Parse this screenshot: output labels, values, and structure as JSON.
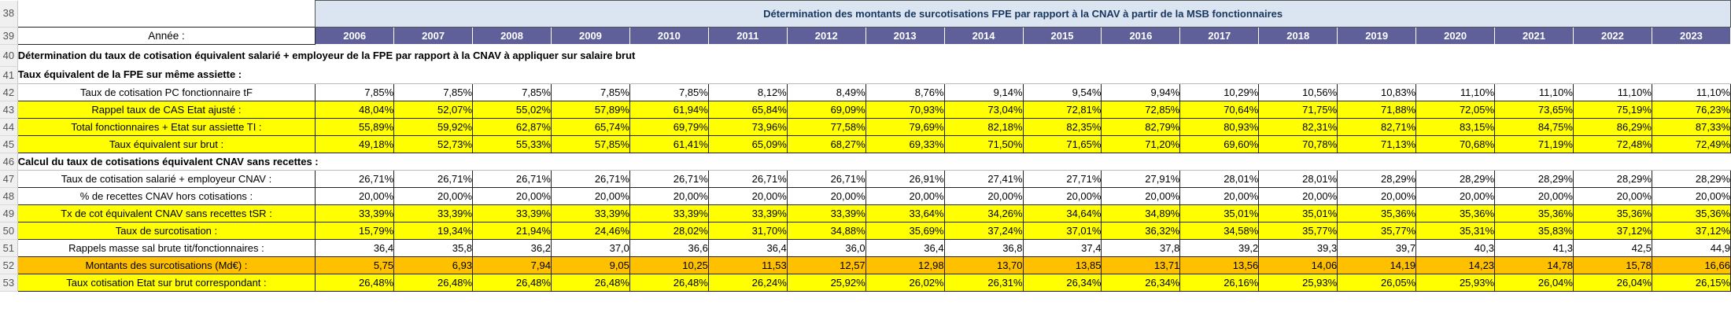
{
  "title": "Détermination des montants de surcotisations FPE par rapport à la CNAV à partir de la MSB fonctionnaires",
  "year_label": "Année :",
  "years": [
    "2006",
    "2007",
    "2008",
    "2009",
    "2010",
    "2011",
    "2012",
    "2013",
    "2014",
    "2015",
    "2016",
    "2017",
    "2018",
    "2019",
    "2020",
    "2021",
    "2022",
    "2023"
  ],
  "section_title": "Détermination du taux de cotisation équivalent salarié + employeur de la FPE par rapport à la CNAV à appliquer sur salaire brut",
  "subsection1": "Taux équivalent de la FPE sur même assiette :",
  "subsection2": "Calcul du taux de cotisations équivalent CNAV sans recettes :",
  "row_numbers": [
    "38",
    "39",
    "40",
    "41",
    "42",
    "43",
    "44",
    "45",
    "46",
    "47",
    "48",
    "49",
    "50",
    "51",
    "52",
    "53"
  ],
  "rows": [
    {
      "label": "Taux de cotisation PC fonctionnaire tF",
      "values": [
        "7,85%",
        "7,85%",
        "7,85%",
        "7,85%",
        "7,85%",
        "8,12%",
        "8,49%",
        "8,76%",
        "9,14%",
        "9,54%",
        "9,94%",
        "10,29%",
        "10,56%",
        "10,83%",
        "11,10%",
        "11,10%",
        "11,10%",
        "11,10%"
      ]
    },
    {
      "label": "Rappel taux de CAS Etat ajusté :",
      "values": [
        "48,04%",
        "52,07%",
        "55,02%",
        "57,89%",
        "61,94%",
        "65,84%",
        "69,09%",
        "70,93%",
        "73,04%",
        "72,81%",
        "72,85%",
        "70,64%",
        "71,75%",
        "71,88%",
        "72,05%",
        "73,65%",
        "75,19%",
        "76,23%"
      ]
    },
    {
      "label": "Total fonctionnaires + Etat sur assiette TI :",
      "values": [
        "55,89%",
        "59,92%",
        "62,87%",
        "65,74%",
        "69,79%",
        "73,96%",
        "77,58%",
        "79,69%",
        "82,18%",
        "82,35%",
        "82,79%",
        "80,93%",
        "82,31%",
        "82,71%",
        "83,15%",
        "84,75%",
        "86,29%",
        "87,33%"
      ]
    },
    {
      "label": "Taux équivalent sur brut :",
      "values": [
        "49,18%",
        "52,73%",
        "55,33%",
        "57,85%",
        "61,41%",
        "65,09%",
        "68,27%",
        "69,33%",
        "71,50%",
        "71,65%",
        "71,20%",
        "69,60%",
        "70,78%",
        "71,13%",
        "70,68%",
        "71,19%",
        "72,48%",
        "72,49%"
      ]
    },
    {
      "label": "Taux de cotisation salarié + employeur CNAV :",
      "values": [
        "26,71%",
        "26,71%",
        "26,71%",
        "26,71%",
        "26,71%",
        "26,71%",
        "26,71%",
        "26,91%",
        "27,41%",
        "27,71%",
        "27,91%",
        "28,01%",
        "28,01%",
        "28,29%",
        "28,29%",
        "28,29%",
        "28,29%",
        "28,29%"
      ]
    },
    {
      "label": "% de recettes CNAV hors cotisations :",
      "values": [
        "20,00%",
        "20,00%",
        "20,00%",
        "20,00%",
        "20,00%",
        "20,00%",
        "20,00%",
        "20,00%",
        "20,00%",
        "20,00%",
        "20,00%",
        "20,00%",
        "20,00%",
        "20,00%",
        "20,00%",
        "20,00%",
        "20,00%",
        "20,00%"
      ]
    },
    {
      "label": "Tx de cot équivalent CNAV sans recettes tSR :",
      "values": [
        "33,39%",
        "33,39%",
        "33,39%",
        "33,39%",
        "33,39%",
        "33,39%",
        "33,39%",
        "33,64%",
        "34,26%",
        "34,64%",
        "34,89%",
        "35,01%",
        "35,01%",
        "35,36%",
        "35,36%",
        "35,36%",
        "35,36%",
        "35,36%"
      ]
    },
    {
      "label": "Taux de surcotisation :",
      "values": [
        "15,79%",
        "19,34%",
        "21,94%",
        "24,46%",
        "28,02%",
        "31,70%",
        "34,88%",
        "35,69%",
        "37,24%",
        "37,01%",
        "36,32%",
        "34,58%",
        "35,77%",
        "35,77%",
        "35,31%",
        "35,83%",
        "37,12%",
        "37,12%"
      ]
    },
    {
      "label": "Rappels masse sal brute tit/fonctionnaires :",
      "values": [
        "36,4",
        "35,8",
        "36,2",
        "37,0",
        "36,6",
        "36,4",
        "36,0",
        "36,4",
        "36,8",
        "37,4",
        "37,8",
        "39,2",
        "39,3",
        "39,7",
        "40,3",
        "41,3",
        "42,5",
        "44,9"
      ]
    },
    {
      "label": "Montants des surcotisations (Md€) :",
      "values": [
        "5,75",
        "6,93",
        "7,94",
        "9,05",
        "10,25",
        "11,53",
        "12,57",
        "12,98",
        "13,70",
        "13,85",
        "13,71",
        "13,56",
        "14,06",
        "14,19",
        "14,23",
        "14,78",
        "15,78",
        "16,66"
      ]
    },
    {
      "label": "Taux cotisation Etat sur brut correspondant :",
      "values": [
        "26,48%",
        "26,48%",
        "26,48%",
        "26,48%",
        "26,48%",
        "26,24%",
        "25,92%",
        "26,02%",
        "26,31%",
        "26,34%",
        "26,34%",
        "26,16%",
        "25,93%",
        "26,05%",
        "25,93%",
        "26,04%",
        "26,04%",
        "26,15%"
      ]
    }
  ]
}
